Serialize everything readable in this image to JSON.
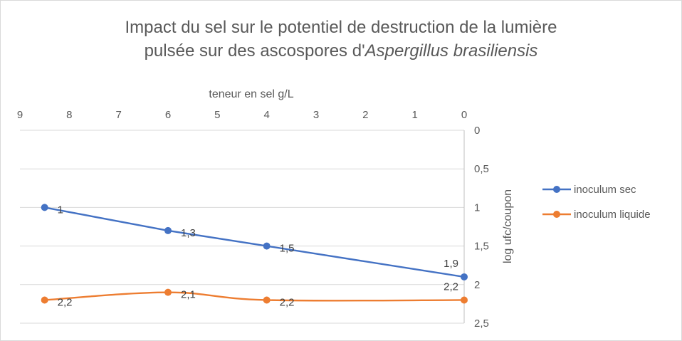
{
  "chart_data": {
    "type": "line",
    "title": {
      "line1": "Impact du sel sur le potentiel de destruction de la lumière",
      "line2_prefix": "pulsée sur des ascospores d'",
      "line2_italic": "Aspergillus brasiliensis"
    },
    "xlabel": "teneur en sel g/L",
    "ylabel": "log ufc/coupon",
    "xlim": [
      0,
      9
    ],
    "x_reversed": true,
    "x_axis_position": "top",
    "x_ticks": [
      "9",
      "8",
      "7",
      "6",
      "5",
      "4",
      "3",
      "2",
      "1",
      "0"
    ],
    "ylim": [
      0,
      2.5
    ],
    "y_reversed": true,
    "y_axis_position": "right",
    "y_ticks": [
      "0",
      "0,5",
      "1",
      "1,5",
      "2",
      "2,5"
    ],
    "grid": true,
    "legend_position": "right",
    "series": [
      {
        "name": "inoculum sec",
        "color": "#4472c4",
        "smooth": false,
        "x": [
          8.5,
          6,
          4,
          0
        ],
        "y": [
          1.0,
          1.3,
          1.5,
          1.9
        ],
        "labels": [
          "1",
          "1,3",
          "1,5",
          "1,9"
        ]
      },
      {
        "name": "inoculum liquide",
        "color": "#ed7d31",
        "smooth": true,
        "x": [
          8.5,
          6,
          4,
          0
        ],
        "y": [
          2.2,
          2.1,
          2.2,
          2.2
        ],
        "labels": [
          "2,2",
          "2,1",
          "2,2",
          "2,2"
        ]
      }
    ]
  }
}
